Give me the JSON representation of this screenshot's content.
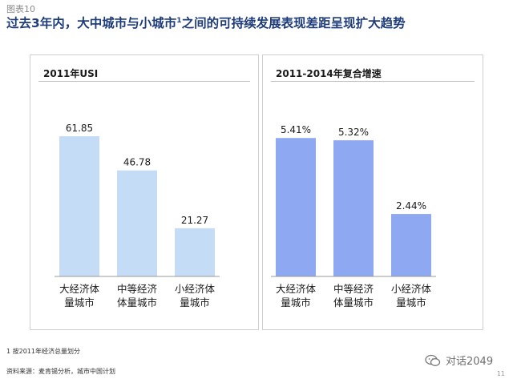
{
  "figure_label": "图表10",
  "title_main": "过去3年内，大中城市与小城市",
  "title_sup": "1",
  "title_rest": "之间的可持续发展表现差距呈现扩大趋势",
  "chart_data": [
    {
      "type": "bar",
      "title": "2011年USI",
      "categories": [
        [
          "大经济体",
          "量城市"
        ],
        [
          "中等经济",
          "体量城市"
        ],
        [
          "小经济体",
          "量城市"
        ]
      ],
      "values": [
        61.85,
        46.78,
        21.27
      ],
      "value_labels": [
        "61.85",
        "46.78",
        "21.27"
      ],
      "ylim": [
        0,
        70
      ],
      "color": "#c5dcf7"
    },
    {
      "type": "bar",
      "title": "2011-2014年复合增速",
      "categories": [
        [
          "大经济体",
          "量城市"
        ],
        [
          "中等经济",
          "体量城市"
        ],
        [
          "小经济体",
          "量城市"
        ]
      ],
      "values": [
        5.41,
        5.32,
        2.44
      ],
      "value_labels": [
        "5.41%",
        "5.32%",
        "2.44%"
      ],
      "ylim": [
        0,
        6.2
      ],
      "color": "#8fa8f2"
    }
  ],
  "footnote": "1 按2011年经济总量划分",
  "source": "资料来源：麦肯锡分析，城市中国计划",
  "watermark": "对话2049",
  "page_number": "11"
}
